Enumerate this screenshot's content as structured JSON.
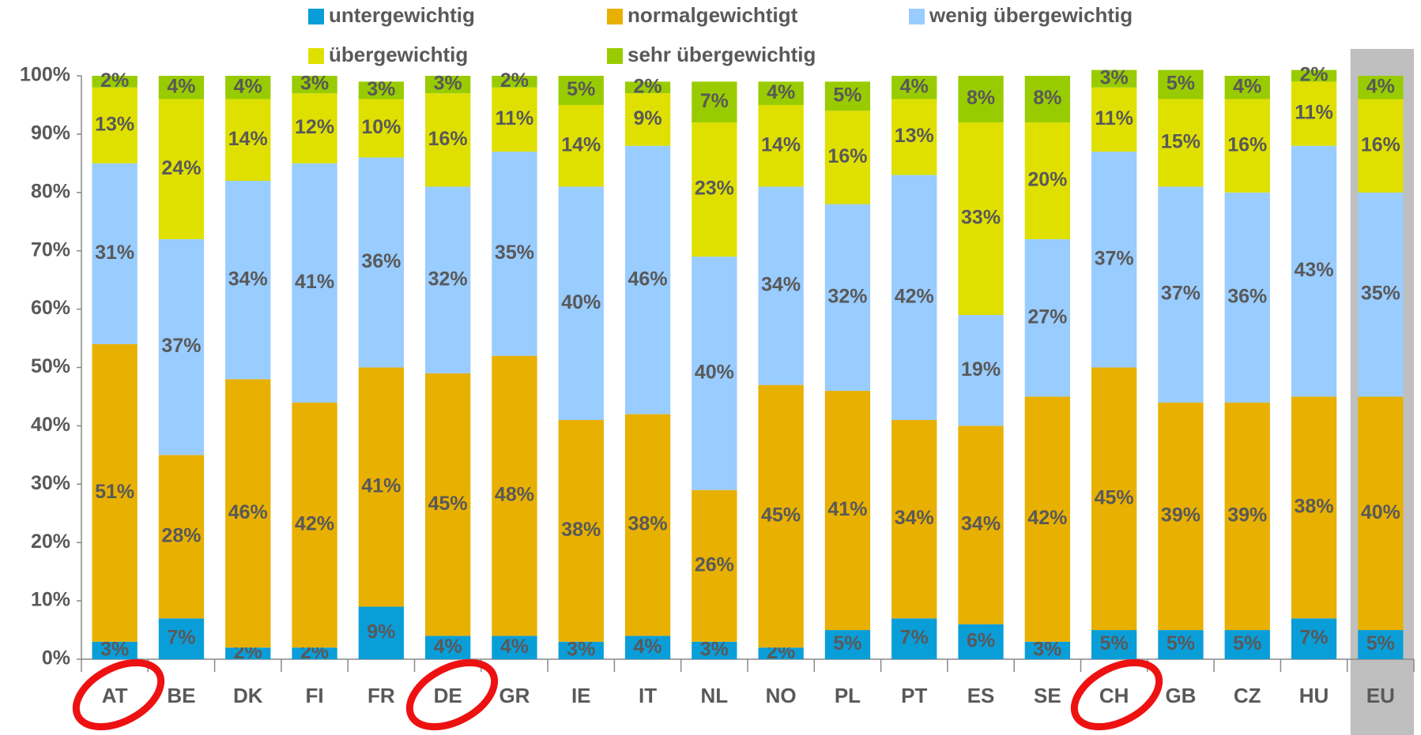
{
  "chart_data": {
    "type": "stacked_bar",
    "categories": [
      "AT",
      "BE",
      "DK",
      "FI",
      "FR",
      "DE",
      "GR",
      "IE",
      "IT",
      "NL",
      "NO",
      "PL",
      "PT",
      "ES",
      "SE",
      "CH",
      "GB",
      "CZ",
      "HU",
      "EU"
    ],
    "series": [
      {
        "name": "untergewichtig",
        "color": "#0a9ed9",
        "values": [
          3,
          7,
          2,
          2,
          9,
          4,
          4,
          3,
          4,
          3,
          2,
          5,
          7,
          6,
          3,
          5,
          5,
          5,
          7,
          5
        ],
        "value_labels": [
          "3%",
          "7%",
          "2%",
          "2%",
          "9%",
          "4%",
          "4%",
          "3%",
          "4%",
          "3%",
          "2%",
          "5%",
          "7%",
          "6%",
          "3%",
          "5%",
          "5%",
          "5%",
          "7%",
          "5%"
        ]
      },
      {
        "name": "normalgewichtigt",
        "color": "#e8b000",
        "values": [
          51,
          28,
          46,
          42,
          41,
          45,
          48,
          38,
          38,
          26,
          45,
          41,
          34,
          34,
          42,
          45,
          39,
          39,
          38,
          40
        ],
        "value_labels": [
          "51%",
          "28%",
          "46%",
          "42%",
          "41%",
          "45%",
          "48%",
          "38%",
          "38%",
          "26%",
          "45%",
          "41%",
          "34%",
          "34%",
          "42%",
          "45%",
          "39%",
          "39%",
          "38%",
          "40%"
        ]
      },
      {
        "name": "wenig übergewichtig",
        "color": "#99ccff",
        "values": [
          31,
          37,
          34,
          41,
          36,
          32,
          35,
          40,
          46,
          40,
          34,
          32,
          42,
          19,
          27,
          37,
          37,
          36,
          43,
          35
        ],
        "value_labels": [
          "31%",
          "37%",
          "34%",
          "41%",
          "36%",
          "32%",
          "35%",
          "40%",
          "46%",
          "40%",
          "34%",
          "32%",
          "42%",
          "19%",
          "27%",
          "37%",
          "37%",
          "36%",
          "43%",
          "35%"
        ]
      },
      {
        "name": "übergewichtig",
        "color": "#dfe000",
        "values": [
          13,
          24,
          14,
          12,
          10,
          16,
          11,
          14,
          9,
          23,
          14,
          16,
          13,
          33,
          20,
          11,
          15,
          16,
          11,
          16
        ],
        "value_labels": [
          "13%",
          "24%",
          "14%",
          "12%",
          "10%",
          "16%",
          "11%",
          "14%",
          "9%",
          "23%",
          "14%",
          "16%",
          "13%",
          "33%",
          "20%",
          "11%",
          "15%",
          "16%",
          "11%",
          "16%"
        ]
      },
      {
        "name": "sehr übergewichtig",
        "color": "#99cc00",
        "values": [
          2,
          4,
          4,
          3,
          3,
          3,
          2,
          5,
          2,
          7,
          4,
          5,
          4,
          8,
          8,
          3,
          5,
          4,
          2,
          4
        ],
        "value_labels": [
          "2%",
          "4%",
          "4%",
          "3%",
          "3%",
          "3%",
          "2%",
          "5%",
          "2%",
          "7%",
          "4%",
          "5%",
          "4%",
          "8%",
          "8%",
          "3%",
          "5%",
          "4%",
          "2%",
          "4%"
        ]
      }
    ],
    "ylim": [
      0,
      100
    ],
    "yticks": [
      {
        "value": 0,
        "label": "0%"
      },
      {
        "value": 10,
        "label": "10%"
      },
      {
        "value": 20,
        "label": "20%"
      },
      {
        "value": 30,
        "label": "30%"
      },
      {
        "value": 40,
        "label": "40%"
      },
      {
        "value": 50,
        "label": "50%"
      },
      {
        "value": 60,
        "label": "60%"
      },
      {
        "value": 70,
        "label": "70%"
      },
      {
        "value": 80,
        "label": "80%"
      },
      {
        "value": 90,
        "label": "90%"
      },
      {
        "value": 100,
        "label": "100%"
      }
    ]
  }
}
